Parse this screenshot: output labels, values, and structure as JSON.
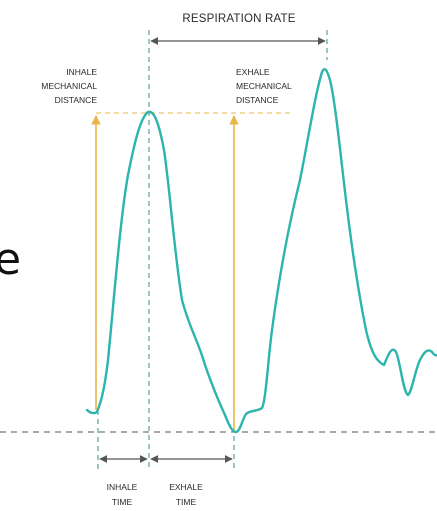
{
  "labels": {
    "respiration_rate": "RESPIRATION RATE",
    "inhale_mechanical_distance": [
      "INHALE",
      "MECHANICAL",
      "DISTANCE"
    ],
    "exhale_mechanical_distance": [
      "EXHALE",
      "MECHANICAL",
      "DISTANCE"
    ],
    "inhale_time": [
      "INHALE",
      "TIME"
    ],
    "exhale_time": [
      "EXHALE",
      "TIME"
    ],
    "partial_letter": "e"
  },
  "colors": {
    "waveform": "#2bb5ac",
    "dashed_guides": "#3d8b86",
    "distance_arrows": "#e8b54a",
    "distance_guide": "#f0cf86",
    "baseline": "#777777",
    "time_arrows": "#555555",
    "text": "#2a2a2a"
  }
}
